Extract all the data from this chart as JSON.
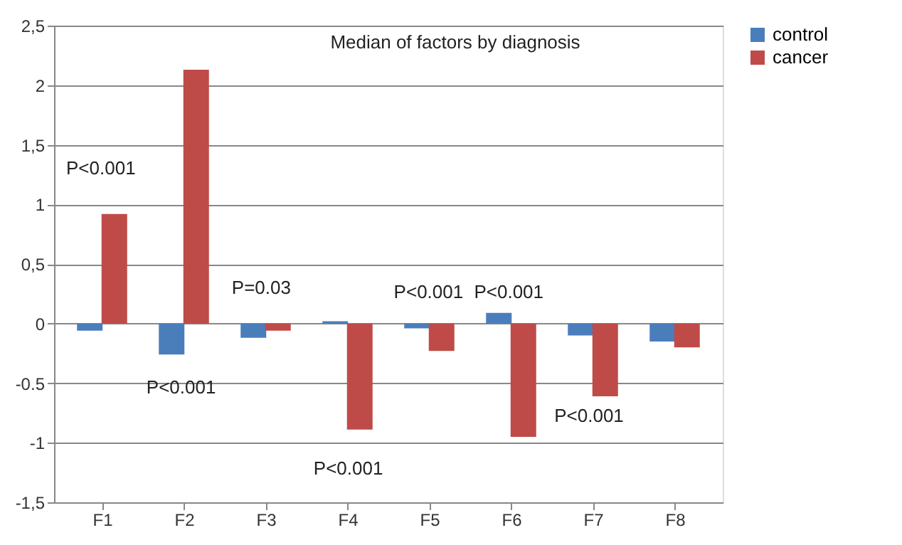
{
  "chart_data": {
    "type": "bar",
    "title": "Median of factors by diagnosis",
    "categories": [
      "F1",
      "F2",
      "F3",
      "F4",
      "F5",
      "F6",
      "F7",
      "F8"
    ],
    "series": [
      {
        "name": "control",
        "color": "#4a7ebb",
        "values": [
          -0.06,
          -0.26,
          -0.12,
          0.02,
          -0.04,
          0.09,
          -0.1,
          -0.15
        ]
      },
      {
        "name": "cancer",
        "color": "#be4b48",
        "values": [
          0.92,
          2.13,
          -0.06,
          -0.89,
          -0.23,
          -0.95,
          -0.61,
          -0.2
        ]
      }
    ],
    "ylim": [
      -1.5,
      2.5
    ],
    "yticks": [
      {
        "value": 2.5,
        "label": "2,5"
      },
      2,
      {
        "value": 1.5,
        "label": "1,5"
      },
      1,
      {
        "value": 0.5,
        "label": "0,5"
      },
      0,
      {
        "value": -0.5,
        "label": "-0.5"
      },
      -1,
      {
        "value": -1.5,
        "label": "-1,5"
      }
    ],
    "grid": "y",
    "legend": "right",
    "annotations": [
      "P<0.001",
      "P<0.001",
      "P=0.03",
      "P<0.001",
      "P<0.001",
      "P<0.001",
      "P<0.001"
    ]
  }
}
